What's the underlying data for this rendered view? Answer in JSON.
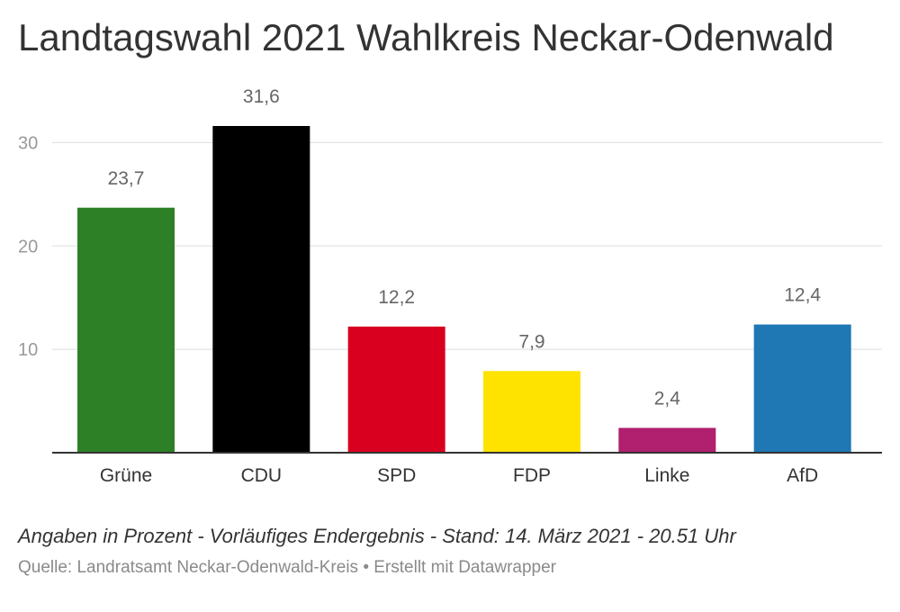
{
  "title": "Landtagswahl 2021 Wahlkreis Neckar-Odenwald",
  "chart_data": {
    "type": "bar",
    "categories": [
      "Grüne",
      "CDU",
      "SPD",
      "FDP",
      "Linke",
      "AfD"
    ],
    "values": [
      23.7,
      31.6,
      12.2,
      7.9,
      2.4,
      12.4
    ],
    "value_labels": [
      "23,7",
      "31,6",
      "12,2",
      "7,9",
      "2,4",
      "12,4"
    ],
    "colors": [
      "#2e8026",
      "#000000",
      "#d9001f",
      "#ffe300",
      "#b0206e",
      "#1f77b4"
    ],
    "yticks": [
      10,
      20,
      30
    ],
    "ylim": [
      0,
      31.6
    ],
    "grid": true
  },
  "note": "Angaben in Prozent - Vorläufiges Endergebnis - Stand: 14. März 2021 - 20.51 Uhr",
  "source": "Quelle: Landratsamt Neckar-Odenwald-Kreis • Erstellt mit Datawrapper"
}
